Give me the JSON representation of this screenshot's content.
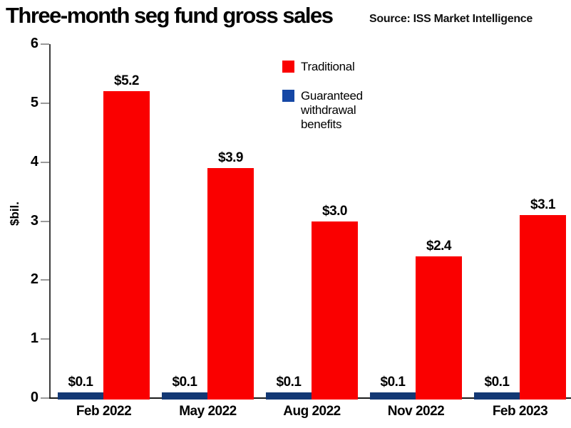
{
  "title": "Three-month seg fund gross sales",
  "source": "Source: ISS Market Intelligence",
  "legend": {
    "items": [
      {
        "label": "Traditional",
        "color": "#fa0000"
      },
      {
        "label": "Guaranteed withdrawal benefits",
        "color": "#1547a5"
      }
    ]
  },
  "colors": {
    "traditional_red": "#fa0000",
    "guaranteed_blue": "#133874",
    "axis": "#3c3c3c",
    "baseline": "#1a1a1a",
    "tick": "#9a9a9a"
  },
  "chart_data": {
    "type": "bar",
    "title": "Three-month seg fund gross sales",
    "source": "Source: ISS Market Intelligence",
    "categories": [
      "Feb 2022",
      "May 2022",
      "Aug 2022",
      "Nov 2022",
      "Feb 2023"
    ],
    "series": [
      {
        "name": "Guaranteed withdrawal benefits",
        "color": "#133874",
        "values": [
          0.1,
          0.1,
          0.1,
          0.1,
          0.1
        ],
        "labels": [
          "$0.1",
          "$0.1",
          "$0.1",
          "$0.1",
          "$0.1"
        ]
      },
      {
        "name": "Traditional",
        "color": "#fa0000",
        "values": [
          5.2,
          3.9,
          3.0,
          2.4,
          3.1
        ],
        "labels": [
          "$5.2",
          "$3.9",
          "$3.0",
          "$2.4",
          "$3.1"
        ]
      }
    ],
    "xlabel": "",
    "ylabel": "$bil.",
    "ylim": [
      0,
      6
    ],
    "yticks": [
      0,
      1,
      2,
      3,
      4,
      5,
      6
    ],
    "grid": false,
    "legend_position": "top-center"
  }
}
